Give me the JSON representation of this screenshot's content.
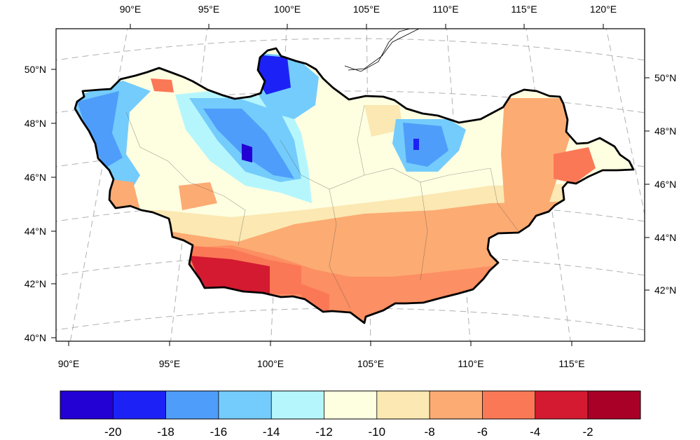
{
  "map": {
    "top_lon_labels": [
      "90°E",
      "95°E",
      "100°E",
      "105°E",
      "110°E",
      "115°E",
      "120°E"
    ],
    "bottom_lon_labels": [
      "90°E",
      "95°E",
      "100°E",
      "105°E",
      "110°E",
      "115°E"
    ],
    "left_lat_labels": [
      "50°N",
      "48°N",
      "46°N",
      "44°N",
      "42°N",
      "40°N"
    ],
    "right_lat_labels": [
      "50°N",
      "48°N",
      "46°N",
      "44°N",
      "42°N"
    ]
  },
  "colorbar": {
    "colors": [
      "#2300d4",
      "#1c22f5",
      "#4f9dfa",
      "#74ccfc",
      "#b5f6fd",
      "#fefee1",
      "#fbe8b2",
      "#fcab73",
      "#fb7856",
      "#d31a30",
      "#a90027"
    ],
    "labels": [
      "-20",
      "-18",
      "-16",
      "-14",
      "-12",
      "-10",
      "-8",
      "-6",
      "-4",
      "-2"
    ]
  }
}
